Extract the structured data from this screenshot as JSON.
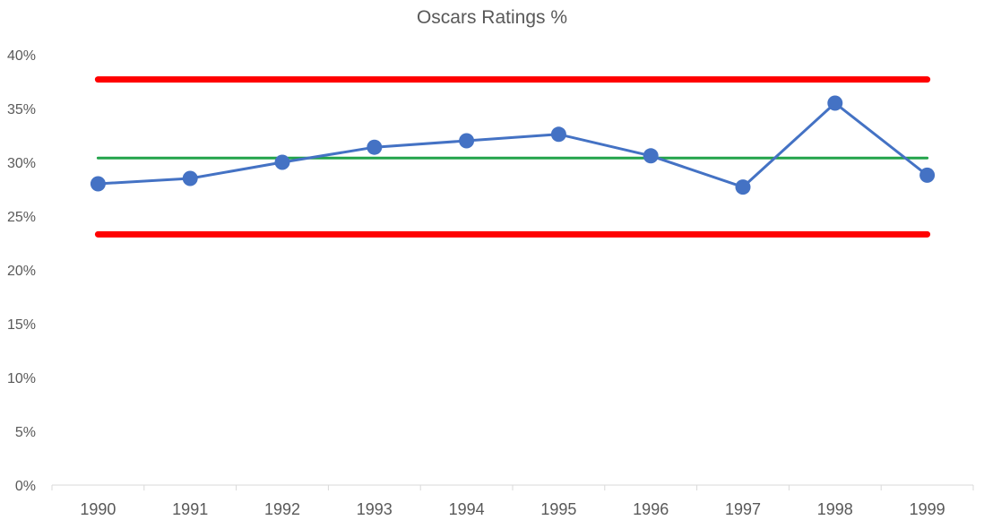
{
  "chart_data": {
    "type": "line",
    "title": "Oscars Ratings %",
    "xlabel": "",
    "ylabel": "",
    "categories": [
      "1990",
      "1991",
      "1992",
      "1993",
      "1994",
      "1995",
      "1996",
      "1997",
      "1998",
      "1999"
    ],
    "series": [
      {
        "values": [
          28.0,
          28.5,
          30.0,
          31.4,
          32.0,
          32.6,
          30.6,
          27.7,
          35.5,
          28.8
        ],
        "color": "#4472C4"
      }
    ],
    "reference_lines": [
      {
        "value": 37.7,
        "color": "#FF0000"
      },
      {
        "value": 30.4,
        "color": "#22A34A"
      },
      {
        "value": 23.3,
        "color": "#FF0000"
      }
    ],
    "ylim": [
      0,
      40
    ],
    "yticks": [
      0,
      5,
      10,
      15,
      20,
      25,
      30,
      35,
      40
    ],
    "ytick_labels": [
      "0%",
      "5%",
      "10%",
      "15%",
      "20%",
      "25%",
      "30%",
      "35%",
      "40%"
    ],
    "grid": false,
    "legend": "none"
  }
}
